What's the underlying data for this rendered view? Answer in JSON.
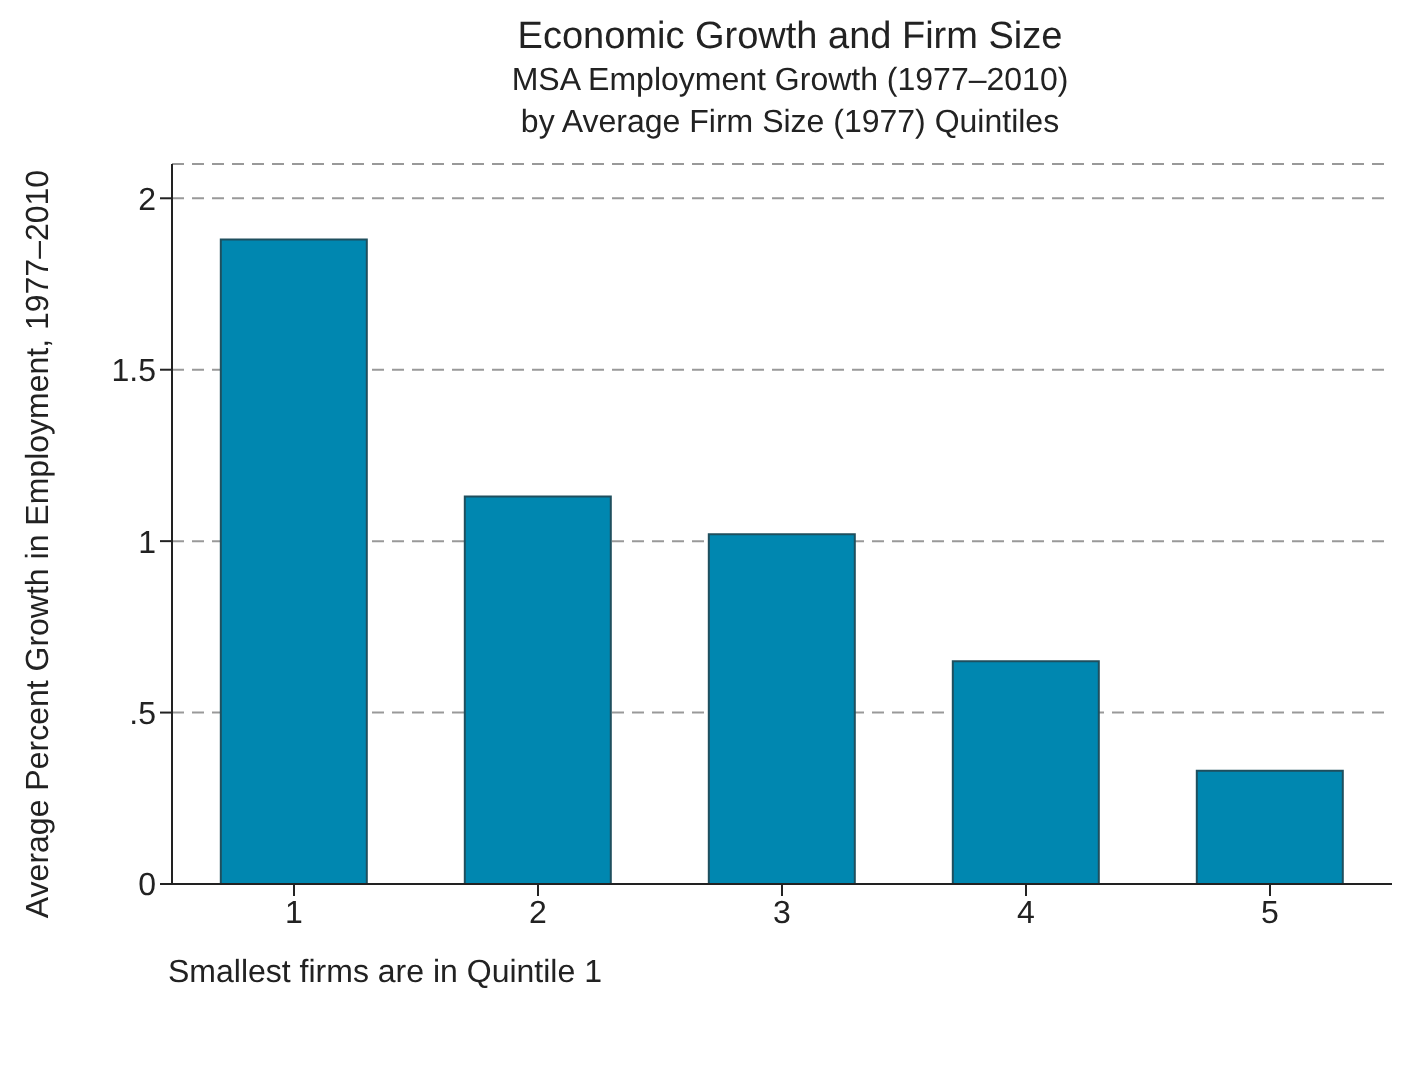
{
  "chart_data": {
    "type": "bar",
    "title": "Economic Growth and Firm Size",
    "subtitle": "MSA Employment Growth (1977–2010)\nby Average Firm Size (1977) Quintiles",
    "ylabel": "Average Percent Growth in Employment, 1977–2010",
    "annotations": [
      "Smallest firms are in Quintile 1"
    ],
    "categories": [
      "1",
      "2",
      "3",
      "4",
      "5"
    ],
    "values": [
      1.88,
      1.13,
      1.02,
      0.65,
      0.33
    ],
    "color": "#0087b0",
    "ylim": [
      0,
      2.1
    ],
    "yticks": [
      0,
      {
        "value": 0.5,
        "label": ".5"
      },
      1,
      1.5,
      2
    ],
    "grid": "y"
  }
}
